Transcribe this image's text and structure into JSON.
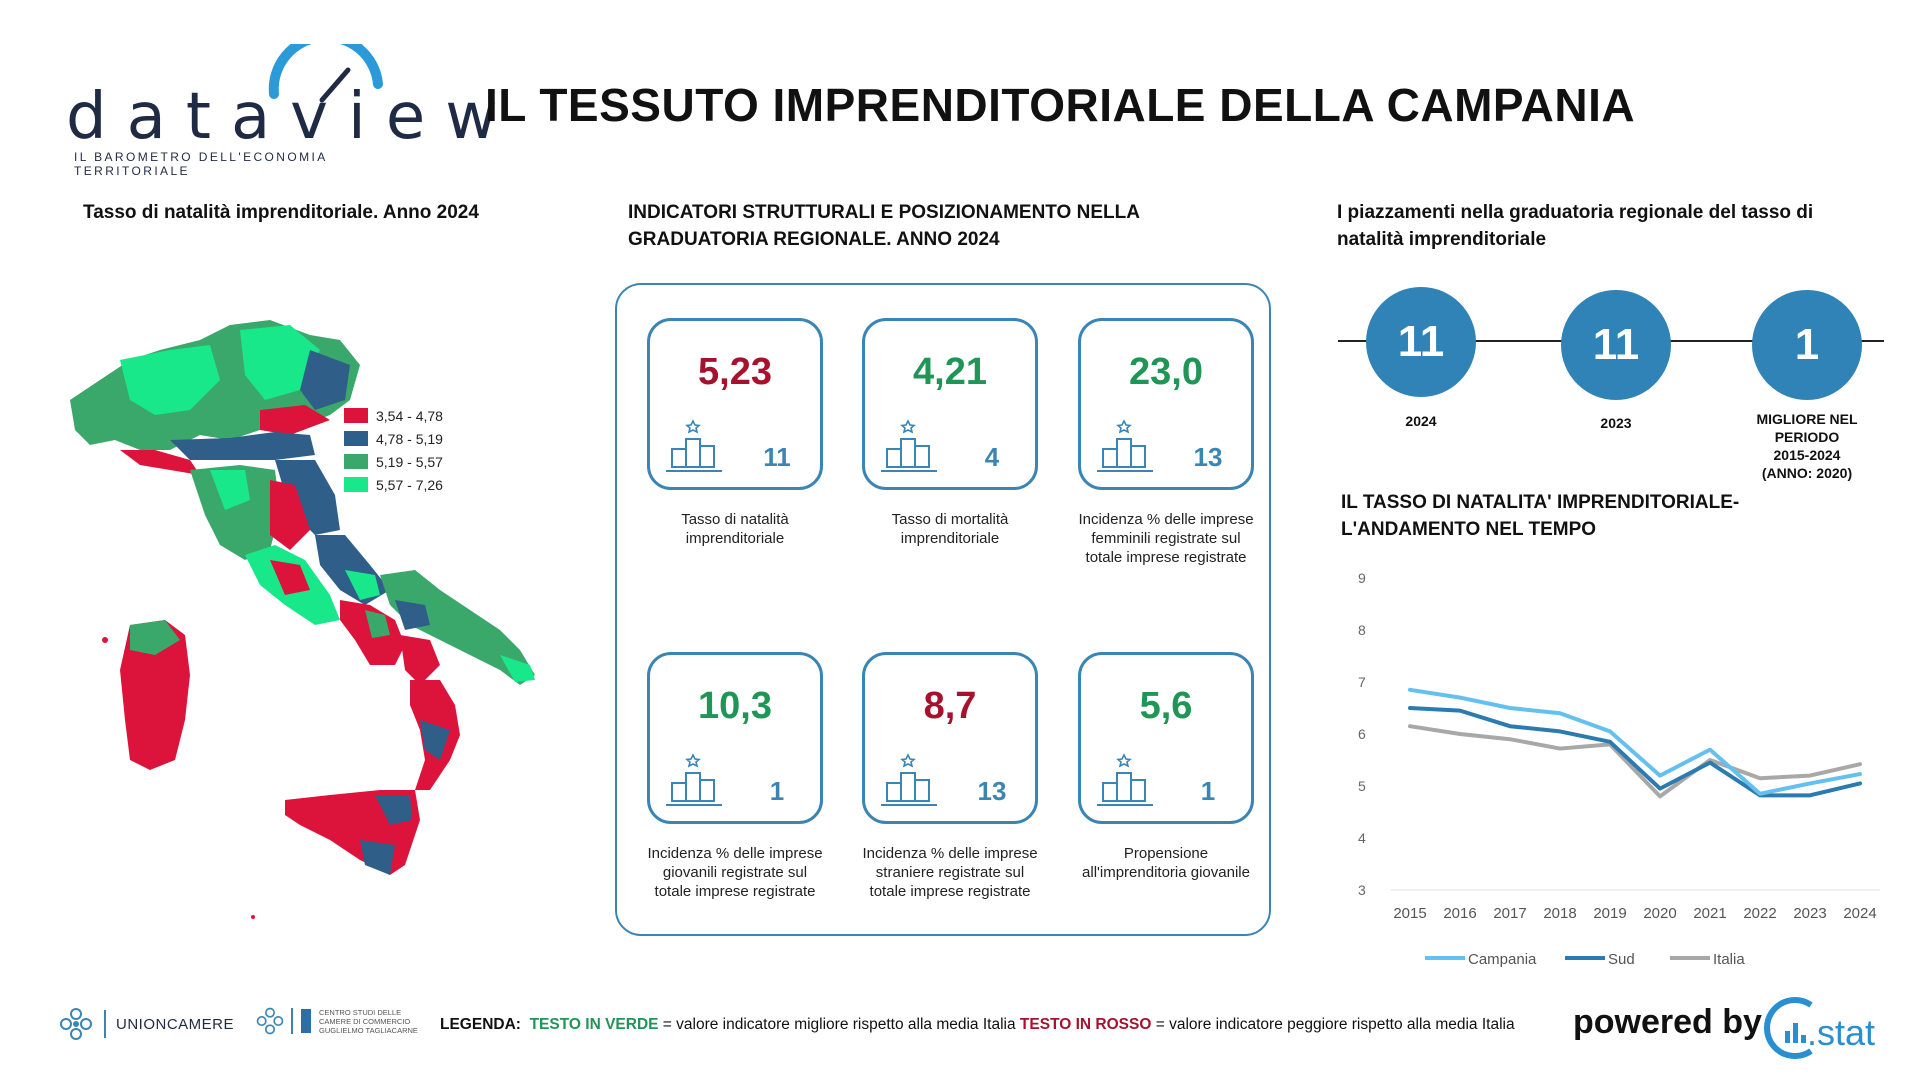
{
  "brand": {
    "name": "dataview",
    "tagline": "IL BAROMETRO DELL'ECONOMIA TERRITORIALE"
  },
  "title": "IL TESSUTO IMPRENDITORIALE DELLA CAMPANIA",
  "map": {
    "title": "Tasso di natalità imprenditoriale. Anno 2024",
    "legend": [
      {
        "label": "3,54 - 4,78",
        "color": "#dc143c"
      },
      {
        "label": "4,78 - 5,19",
        "color": "#2f5e88"
      },
      {
        "label": "5,19 - 5,57",
        "color": "#3aa86b"
      },
      {
        "label": "5,57 - 7,26",
        "color": "#19e88a"
      }
    ]
  },
  "indicators": {
    "title": "INDICATORI STRUTTURALI E POSIZIONAMENTO NELLA GRADUATORIA REGIONALE. ANNO 2024",
    "cards": [
      {
        "value": "5,23",
        "rank": "11",
        "status": "red",
        "label": "Tasso di natalità imprenditoriale"
      },
      {
        "value": "4,21",
        "rank": "4",
        "status": "green",
        "label": "Tasso di mortalità imprenditoriale"
      },
      {
        "value": "23,0",
        "rank": "13",
        "status": "green",
        "label": "Incidenza % delle imprese femminili registrate sul totale imprese registrate"
      },
      {
        "value": "10,3",
        "rank": "1",
        "status": "green",
        "label": "Incidenza % delle imprese giovanili registrate sul totale imprese registrate"
      },
      {
        "value": "8,7",
        "rank": "13",
        "status": "red",
        "label": "Incidenza % delle imprese straniere registrate sul totale imprese registrate"
      },
      {
        "value": "5,6",
        "rank": "1",
        "status": "green",
        "label": "Propensione all'imprenditoria giovanile"
      }
    ]
  },
  "ranking": {
    "title": "I piazzamenti nella graduatoria regionale del tasso di natalità imprenditoriale",
    "items": [
      {
        "value": "11",
        "label": "2024"
      },
      {
        "value": "11",
        "label": "2023"
      },
      {
        "value": "1",
        "label_lines": [
          "MIGLIORE NEL",
          "PERIODO",
          "2015-2024",
          "(ANNO: 2020)"
        ]
      }
    ]
  },
  "chart_data": {
    "type": "line",
    "title": "IL TASSO DI NATALITA' IMPRENDITORIALE- L'ANDAMENTO NEL TEMPO",
    "title_lines": [
      "IL TASSO DI NATALITA' IMPRENDITORIALE-",
      "L'ANDAMENTO NEL TEMPO"
    ],
    "x": [
      "2015",
      "2016",
      "2017",
      "2018",
      "2019",
      "2020",
      "2021",
      "2022",
      "2023",
      "2024"
    ],
    "ylim": [
      3,
      9
    ],
    "yticks": [
      3,
      4,
      5,
      6,
      7,
      8,
      9
    ],
    "grid": false,
    "legend_position": "bottom",
    "series": [
      {
        "name": "Campania",
        "color": "#63c0ef",
        "values": [
          6.85,
          6.7,
          6.5,
          6.4,
          6.05,
          5.2,
          5.7,
          4.85,
          5.05,
          5.23
        ]
      },
      {
        "name": "Sud",
        "color": "#2b7bb0",
        "values": [
          6.5,
          6.45,
          6.15,
          6.05,
          5.85,
          4.95,
          5.45,
          4.82,
          4.82,
          5.05
        ]
      },
      {
        "name": "Italia",
        "color": "#a8a8a8",
        "values": [
          6.15,
          6.0,
          5.9,
          5.72,
          5.8,
          4.8,
          5.5,
          5.15,
          5.2,
          5.42
        ]
      }
    ]
  },
  "footer": {
    "org1": "UNIONCAMERE",
    "org2_lines": [
      "CENTRO STUDI DELLE",
      "CAMERE DI COMMERCIO",
      "GUGLIELMO TAGLIACARNE"
    ],
    "legend_label": "LEGENDA:",
    "legend_green": "TESTO IN VERDE",
    "legend_green_desc": "= valore indicatore migliore rispetto alla media Italia",
    "legend_red": "TESTO IN ROSSO",
    "legend_red_desc": "= valore indicatore peggiore rispetto alla media Italia",
    "powered": "powered by",
    "cstat": ".stat"
  }
}
